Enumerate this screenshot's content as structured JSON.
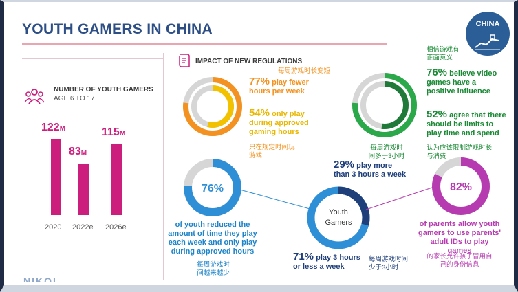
{
  "header": {
    "title": "YOUTH GAMERS IN CHINA",
    "badge": "CHINA"
  },
  "youth_gamers": {
    "label": "NUMBER OF YOUTH GAMERS",
    "sublabel": "AGE 6 TO 17",
    "unit": "M"
  },
  "regulations": {
    "label": "IMPACT OF NEW REGULATIONS",
    "cn_play_time_changed": "每周游戏时长变短",
    "pct77": "77%",
    "text77": "play fewer hours per week",
    "pct54": "54%",
    "text54": "only play during approved gaming hours",
    "cn_54": "只在规定时间玩游戏",
    "cn_positive": "相信游戏有正面意义",
    "pct76b": "76%",
    "text76b": "believe video games have a positive influence",
    "pct52": "52%",
    "text52": "agree that there should be limits to play time and spend",
    "cn_52": "认为应该限制游戏时长与消费",
    "cn_over3": "每周游戏时间多于3小时"
  },
  "youth_gamers_section": {
    "center_label": "Youth Gamers",
    "pct76": "76%",
    "text76": "of youth reduced the amount of time they play each week and only play during approved hours",
    "cn_76": "每周游戏时间越来越少",
    "pct29": "29%",
    "text29": "play more than 3 hours a week",
    "pct71": "71%",
    "text71": "play 3 hours or less a week",
    "cn_71": "每周游戏时间少于3小时",
    "pct82": "82%",
    "text82": "of parents allow youth gamers to use parents' adult IDs to play games",
    "cn_82": "的家长允许孩子冒用自己的身份信息"
  },
  "footer": {
    "logo_fragment": "NIKOI"
  },
  "colors": {
    "magenta": "#cc1f7d",
    "orange": "#f39220",
    "yellow": "#f2c100",
    "green": "#2aa84a",
    "blue": "#2f8fd6",
    "navy": "#1f3f7a",
    "purple": "#b73bb0",
    "grey": "#d6d6d6"
  },
  "chart_data": [
    {
      "type": "bar",
      "categories": [
        "2020",
        "2022e",
        "2026e"
      ],
      "values": [
        122,
        83,
        115
      ],
      "value_labels": [
        "122M",
        "83M",
        "115M"
      ],
      "title": "NUMBER OF YOUTH GAMERS",
      "subtitle": "AGE 6 TO 17"
    },
    {
      "type": "pie",
      "series": [
        {
          "values": [
            77,
            23
          ]
        }
      ]
    },
    {
      "type": "pie",
      "series": [
        {
          "values": [
            54,
            46
          ]
        }
      ]
    },
    {
      "type": "pie",
      "series": [
        {
          "values": [
            76,
            24
          ]
        }
      ]
    },
    {
      "type": "pie",
      "series": [
        {
          "values": [
            52,
            48
          ]
        }
      ]
    },
    {
      "type": "pie",
      "series": [
        {
          "values": [
            76,
            24
          ]
        }
      ]
    },
    {
      "type": "pie",
      "series": [
        {
          "values": [
            29,
            71
          ]
        }
      ]
    },
    {
      "type": "pie",
      "series": [
        {
          "values": [
            82,
            18
          ]
        }
      ]
    }
  ]
}
